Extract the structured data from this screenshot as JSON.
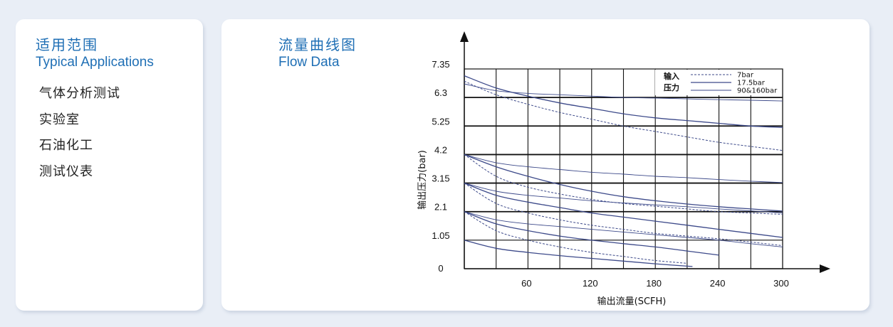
{
  "applications": {
    "title_cn": "适用范围",
    "title_en": "Typical Applications",
    "items": [
      "气体分析测试",
      "实验室",
      "石油化工",
      "测试仪表"
    ]
  },
  "flow": {
    "title_cn": "流量曲线图",
    "title_en": "Flow Data"
  },
  "colors": {
    "accent": "#1f6fb5",
    "curve": "#3d4a8a",
    "background": "#e9eef6"
  },
  "chart_data": {
    "type": "line",
    "xlabel": "输出流量(SCFH)",
    "ylabel": "输出压力(bar)",
    "xlim": [
      0,
      300
    ],
    "ylim": [
      0,
      7.35
    ],
    "xticks": [
      60,
      120,
      180,
      240,
      300
    ],
    "yticks": [
      "0",
      "1.05",
      "2.1",
      "3.15",
      "4.2",
      "5.25",
      "6.3",
      "7.35"
    ],
    "ytick_values": [
      0,
      1.05,
      2.1,
      3.15,
      4.2,
      5.25,
      6.3,
      7.35
    ],
    "grid_x": [
      30,
      60,
      90,
      120,
      150,
      180,
      210,
      240,
      270,
      300
    ],
    "grid": true,
    "legend": {
      "position": "top-right",
      "label_line1": "输入",
      "label_line2": "压力",
      "entries": [
        {
          "name": "7bar",
          "style": "dashed"
        },
        {
          "name": "17.5bar",
          "style": "solid"
        },
        {
          "name": "90&160bar",
          "style": "thin"
        }
      ]
    },
    "series": [
      {
        "group": "6.3",
        "style": "dashed",
        "x": [
          0,
          30,
          60,
          90,
          120,
          150,
          180,
          210,
          240,
          270,
          300
        ],
        "y": [
          6.9,
          6.4,
          6.05,
          5.75,
          5.5,
          5.25,
          5.05,
          4.85,
          4.65,
          4.5,
          4.35
        ]
      },
      {
        "group": "6.3",
        "style": "solid",
        "x": [
          0,
          30,
          60,
          90,
          120,
          150,
          180,
          210,
          240,
          270,
          300
        ],
        "y": [
          7.1,
          6.65,
          6.35,
          6.1,
          5.9,
          5.7,
          5.55,
          5.45,
          5.35,
          5.25,
          5.2
        ]
      },
      {
        "group": "6.3",
        "style": "thin",
        "x": [
          0,
          30,
          60,
          90,
          120,
          150,
          180,
          210,
          240,
          270,
          300
        ],
        "y": [
          6.8,
          6.55,
          6.45,
          6.4,
          6.35,
          6.3,
          6.28,
          6.25,
          6.22,
          6.2,
          6.17
        ]
      },
      {
        "group": "4.2",
        "style": "dashed",
        "x": [
          0,
          30,
          60,
          90,
          120,
          150,
          180,
          210,
          240,
          270,
          300
        ],
        "y": [
          4.2,
          3.4,
          3.0,
          2.75,
          2.55,
          2.4,
          2.3,
          2.2,
          2.1,
          2.05,
          2.0
        ]
      },
      {
        "group": "4.2",
        "style": "solid",
        "x": [
          0,
          30,
          60,
          90,
          120,
          150,
          180,
          210,
          240,
          270,
          300
        ],
        "y": [
          4.2,
          3.75,
          3.4,
          3.1,
          2.85,
          2.65,
          2.5,
          2.38,
          2.28,
          2.2,
          2.12
        ]
      },
      {
        "group": "4.2",
        "style": "thin",
        "x": [
          0,
          30,
          60,
          90,
          120,
          150,
          180,
          210,
          240,
          270,
          300
        ],
        "y": [
          4.2,
          3.9,
          3.75,
          3.65,
          3.55,
          3.48,
          3.4,
          3.35,
          3.28,
          3.22,
          3.17
        ]
      },
      {
        "group": "3.15",
        "style": "dashed",
        "x": [
          0,
          30,
          60,
          90,
          120,
          150,
          180,
          210,
          240,
          270,
          300
        ],
        "y": [
          3.15,
          2.4,
          2.05,
          1.8,
          1.6,
          1.45,
          1.3,
          1.2,
          1.1,
          0.98,
          0.85
        ]
      },
      {
        "group": "3.15",
        "style": "solid",
        "x": [
          0,
          30,
          60,
          90,
          120,
          150,
          180,
          210,
          240,
          270,
          300
        ],
        "y": [
          3.15,
          2.7,
          2.45,
          2.25,
          2.05,
          1.9,
          1.75,
          1.6,
          1.45,
          1.3,
          1.15
        ]
      },
      {
        "group": "3.15",
        "style": "thin",
        "x": [
          0,
          30,
          60,
          90,
          120,
          150,
          180,
          210,
          240,
          270,
          300
        ],
        "y": [
          3.15,
          2.85,
          2.7,
          2.6,
          2.5,
          2.42,
          2.35,
          2.28,
          2.2,
          2.13,
          2.05
        ]
      },
      {
        "group": "2.1",
        "style": "dashed",
        "x": [
          0,
          30,
          60,
          90,
          120,
          150,
          180,
          210
        ],
        "y": [
          2.1,
          1.4,
          1.05,
          0.8,
          0.6,
          0.45,
          0.3,
          0.2
        ]
      },
      {
        "group": "2.1",
        "style": "solid",
        "x": [
          0,
          30,
          60,
          90,
          120,
          150,
          180,
          210,
          240
        ],
        "y": [
          2.1,
          1.65,
          1.4,
          1.2,
          1.05,
          0.92,
          0.8,
          0.65,
          0.5
        ]
      },
      {
        "group": "2.1",
        "style": "thin",
        "x": [
          0,
          30,
          60,
          90,
          120,
          150,
          180,
          210,
          240,
          270,
          300
        ],
        "y": [
          2.1,
          1.8,
          1.65,
          1.55,
          1.45,
          1.35,
          1.25,
          1.15,
          1.05,
          0.92,
          0.8
        ]
      },
      {
        "group": "1.05",
        "style": "solid",
        "x": [
          0,
          30,
          60,
          90,
          120,
          150,
          180,
          215
        ],
        "y": [
          1.05,
          0.75,
          0.6,
          0.48,
          0.38,
          0.28,
          0.18,
          0.08
        ]
      }
    ]
  }
}
